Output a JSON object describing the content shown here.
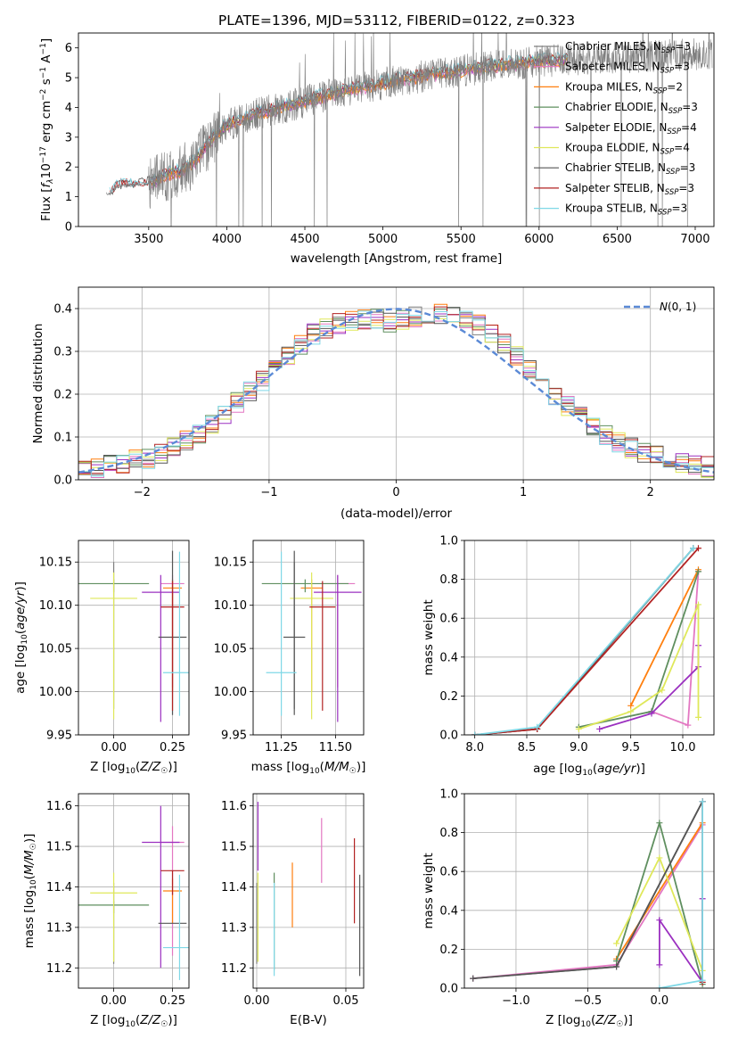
{
  "page": {
    "title": "PLATE=1396, MJD=53112, FIBERID=0122, z=0.323"
  },
  "colors": {
    "chabrier_miles": "#7f7f7f",
    "salpeter_miles": "#e377c2",
    "kroupa_miles": "#ff7f0e",
    "chabrier_elodie": "#5f8f5f",
    "salpeter_elodie": "#9b30c0",
    "kroupa_elodie": "#dfe85a",
    "chabrier_stelib": "#555555",
    "salpeter_stelib": "#b22222",
    "kroupa_stelib": "#7fd8e6",
    "normal_curve": "#5b8ad6",
    "grid": "#b0b0b0"
  },
  "chart_data": [
    {
      "id": "spectrum",
      "type": "line",
      "title": "PLATE=1396, MJD=53112, FIBERID=0122, z=0.323",
      "xlabel": "wavelength [Angstrom, rest frame]",
      "ylabel": "Flux [f_λ 10^-17 erg cm^-2 s^-1 A^-1]",
      "xlim": [
        3050,
        7120
      ],
      "ylim": [
        0,
        6.5
      ],
      "xticks": [
        3500,
        4000,
        4500,
        5000,
        5500,
        6000,
        6500,
        7000
      ],
      "yticks": [
        0,
        1,
        2,
        3,
        4,
        5,
        6
      ],
      "grid": false,
      "legend_position": "right",
      "continuum_x": [
        3250,
        3300,
        3400,
        3500,
        3600,
        3700,
        3800,
        3900,
        4000,
        4200,
        4400,
        4600,
        4800,
        5000,
        5200,
        5400,
        5600,
        5800,
        6000,
        6200,
        6400,
        6600,
        6800,
        7000
      ],
      "continuum_y": [
        1.1,
        1.35,
        1.4,
        1.45,
        1.7,
        1.85,
        2.2,
        2.9,
        3.4,
        3.8,
        4.05,
        4.35,
        4.6,
        4.8,
        5.0,
        5.15,
        5.3,
        5.45,
        5.55,
        5.6,
        5.65,
        5.7,
        5.75,
        5.8
      ],
      "series": [
        {
          "name": "Chabrier MILES, N_SSP=3",
          "n": "3",
          "color_key": "chabrier_miles"
        },
        {
          "name": "Salpeter MILES, N_SSP=3",
          "n": "3",
          "color_key": "salpeter_miles"
        },
        {
          "name": "Kroupa MILES, N_SSP=2",
          "n": "2",
          "color_key": "kroupa_miles"
        },
        {
          "name": "Chabrier ELODIE, N_SSP=3",
          "n": "3",
          "color_key": "chabrier_elodie"
        },
        {
          "name": "Salpeter ELODIE, N_SSP=4",
          "n": "4",
          "color_key": "salpeter_elodie"
        },
        {
          "name": "Kroupa ELODIE, N_SSP=4",
          "n": "4",
          "color_key": "kroupa_elodie"
        },
        {
          "name": "Chabrier STELIB, N_SSP=3",
          "n": "3",
          "color_key": "chabrier_stelib"
        },
        {
          "name": "Salpeter STELIB, N_SSP=3",
          "n": "3",
          "color_key": "salpeter_stelib"
        },
        {
          "name": "Kroupa STELIB, N_SSP=3",
          "n": "3",
          "color_key": "kroupa_stelib"
        }
      ]
    },
    {
      "id": "residuals",
      "type": "line",
      "xlabel": "(data-model)/error",
      "ylabel": "Normed distribution",
      "xlim": [
        -2.5,
        2.5
      ],
      "ylim": [
        0,
        0.45
      ],
      "xticks": [
        -2,
        -1,
        0,
        1,
        2
      ],
      "yticks": [
        0.0,
        0.1,
        0.2,
        0.3,
        0.4
      ],
      "grid": true,
      "legend_position": "top-right",
      "reference": {
        "name": "N(0,1)",
        "mean": 0,
        "std": 1
      },
      "hist_bin_width": 0.1,
      "hist_x": [
        -2.45,
        -2.35,
        -2.25,
        -2.15,
        -2.05,
        -1.95,
        -1.85,
        -1.75,
        -1.65,
        -1.55,
        -1.45,
        -1.35,
        -1.25,
        -1.15,
        -1.05,
        -0.95,
        -0.85,
        -0.75,
        -0.65,
        -0.55,
        -0.45,
        -0.35,
        -0.25,
        -0.15,
        -0.05,
        0.05,
        0.15,
        0.25,
        0.35,
        0.45,
        0.55,
        0.65,
        0.75,
        0.85,
        0.95,
        1.05,
        1.15,
        1.25,
        1.35,
        1.45,
        1.55,
        1.65,
        1.75,
        1.85,
        1.95,
        2.05,
        2.15,
        2.25,
        2.35,
        2.45
      ],
      "hist_y": [
        0.025,
        0.03,
        0.035,
        0.04,
        0.045,
        0.05,
        0.06,
        0.075,
        0.09,
        0.11,
        0.13,
        0.155,
        0.18,
        0.205,
        0.23,
        0.26,
        0.29,
        0.315,
        0.34,
        0.355,
        0.365,
        0.37,
        0.375,
        0.375,
        0.37,
        0.375,
        0.38,
        0.385,
        0.39,
        0.385,
        0.375,
        0.36,
        0.34,
        0.315,
        0.29,
        0.26,
        0.23,
        0.2,
        0.175,
        0.15,
        0.125,
        0.105,
        0.09,
        0.075,
        0.065,
        0.055,
        0.045,
        0.04,
        0.035,
        0.03
      ]
    },
    {
      "id": "age_vs_Z",
      "type": "scatter",
      "xlabel": "Z [log10(Z/Z☉)]",
      "ylabel": "age [log10(age/yr)]",
      "xlim": [
        -0.15,
        0.32
      ],
      "ylim": [
        9.95,
        10.175
      ],
      "xticks": [
        "0.00",
        "0.25"
      ],
      "yticks": [
        "9.95",
        "10.00",
        "10.05",
        "10.10",
        "10.15"
      ],
      "grid": true,
      "points": [
        {
          "color_key": "chabrier_miles",
          "x": 0.0,
          "xerr": 0.0,
          "y": 10.08,
          "yerr_lo": 0.1,
          "yerr_hi": 0.07
        },
        {
          "color_key": "salpeter_miles",
          "x": 0.25,
          "xerr": 0.05,
          "y": 10.125,
          "yerr_lo": 0.12,
          "yerr_hi": 0.01
        },
        {
          "color_key": "kroupa_miles",
          "x": 0.25,
          "xerr": 0.04,
          "y": 10.12,
          "yerr_lo": 0.12,
          "yerr_hi": 0.01
        },
        {
          "color_key": "chabrier_elodie",
          "x": 0.0,
          "xerr": 0.15,
          "y": 10.125,
          "yerr_lo": 0.01,
          "yerr_hi": 0.005
        },
        {
          "color_key": "salpeter_elodie",
          "x": 0.2,
          "xerr": 0.08,
          "y": 10.115,
          "yerr_lo": 0.15,
          "yerr_hi": 0.02
        },
        {
          "color_key": "kroupa_elodie",
          "x": 0.0,
          "xerr": 0.1,
          "y": 10.108,
          "yerr_lo": 0.14,
          "yerr_hi": 0.03
        },
        {
          "color_key": "chabrier_stelib",
          "x": 0.25,
          "xerr": 0.06,
          "y": 10.063,
          "yerr_lo": 0.09,
          "yerr_hi": 0.1
        },
        {
          "color_key": "salpeter_stelib",
          "x": 0.25,
          "xerr": 0.05,
          "y": 10.098,
          "yerr_lo": 0.12,
          "yerr_hi": 0.03
        },
        {
          "color_key": "kroupa_stelib",
          "x": 0.28,
          "xerr": 0.07,
          "y": 10.022,
          "yerr_lo": 0.05,
          "yerr_hi": 0.14
        }
      ]
    },
    {
      "id": "age_vs_mass",
      "type": "scatter",
      "xlabel": "mass [log10(M/M☉)]",
      "ylabel": "",
      "xlim": [
        11.12,
        11.63
      ],
      "ylim": [
        9.95,
        10.175
      ],
      "xticks": [
        "11.25",
        "11.50"
      ],
      "yticks": [
        "9.95",
        "10.00",
        "10.05",
        "10.10",
        "10.15"
      ],
      "grid": true,
      "points": [
        {
          "color_key": "chabrier_miles",
          "x": 11.31,
          "xerr": 0.0,
          "y": 10.08,
          "yerr_lo": 0.1,
          "yerr_hi": 0.07
        },
        {
          "color_key": "salpeter_miles",
          "x": 11.51,
          "xerr": 0.08,
          "y": 10.125,
          "yerr_lo": 0.12,
          "yerr_hi": 0.01
        },
        {
          "color_key": "kroupa_miles",
          "x": 11.39,
          "xerr": 0.05,
          "y": 10.12,
          "yerr_lo": 0.12,
          "yerr_hi": 0.01
        },
        {
          "color_key": "chabrier_elodie",
          "x": 11.36,
          "xerr": 0.2,
          "y": 10.125,
          "yerr_lo": 0.01,
          "yerr_hi": 0.005
        },
        {
          "color_key": "salpeter_elodie",
          "x": 11.51,
          "xerr": 0.11,
          "y": 10.115,
          "yerr_lo": 0.15,
          "yerr_hi": 0.02
        },
        {
          "color_key": "kroupa_elodie",
          "x": 11.39,
          "xerr": 0.1,
          "y": 10.108,
          "yerr_lo": 0.14,
          "yerr_hi": 0.03
        },
        {
          "color_key": "chabrier_stelib",
          "x": 11.31,
          "xerr": 0.05,
          "y": 10.063,
          "yerr_lo": 0.09,
          "yerr_hi": 0.1
        },
        {
          "color_key": "salpeter_stelib",
          "x": 11.44,
          "xerr": 0.06,
          "y": 10.098,
          "yerr_lo": 0.12,
          "yerr_hi": 0.03
        },
        {
          "color_key": "kroupa_stelib",
          "x": 11.25,
          "xerr": 0.07,
          "y": 10.022,
          "yerr_lo": 0.05,
          "yerr_hi": 0.14
        }
      ]
    },
    {
      "id": "weight_vs_age",
      "type": "line",
      "xlabel": "age [log10(age/yr)]",
      "ylabel": "mass weight",
      "xlim": [
        7.9,
        10.3
      ],
      "ylim": [
        0.0,
        1.0
      ],
      "xticks": [
        "8.0",
        "8.5",
        "9.0",
        "9.5",
        "10.0"
      ],
      "yticks": [
        "0.0",
        "0.2",
        "0.4",
        "0.6",
        "0.8",
        "1.0"
      ],
      "grid": true,
      "series": [
        {
          "color_key": "chabrier_miles",
          "x": [
            8.0,
            8.6,
            10.1
          ],
          "y": [
            0.0,
            0.03,
            0.96
          ]
        },
        {
          "color_key": "salpeter_miles",
          "x": [
            9.7,
            10.05,
            10.15
          ],
          "y": [
            0.12,
            0.05,
            0.84
          ]
        },
        {
          "color_key": "kroupa_miles",
          "x": [
            9.5,
            10.15
          ],
          "y": [
            0.15,
            0.85
          ]
        },
        {
          "color_key": "chabrier_elodie",
          "x": [
            9.0,
            9.7,
            10.15
          ],
          "y": [
            0.04,
            0.12,
            0.84
          ]
        },
        {
          "color_key": "salpeter_elodie",
          "x": [
            9.2,
            9.7,
            10.15,
            10.15
          ],
          "y": [
            0.03,
            0.11,
            0.35,
            0.46
          ]
        },
        {
          "color_key": "kroupa_elodie",
          "x": [
            9.0,
            9.5,
            9.8,
            10.15,
            10.15
          ],
          "y": [
            0.03,
            0.12,
            0.23,
            0.67,
            0.09
          ]
        },
        {
          "color_key": "chabrier_stelib",
          "x": [
            8.0,
            8.6,
            10.1
          ],
          "y": [
            0.0,
            0.03,
            0.96
          ]
        },
        {
          "color_key": "salpeter_stelib",
          "x": [
            8.0,
            8.6,
            10.15
          ],
          "y": [
            0.0,
            0.03,
            0.96
          ]
        },
        {
          "color_key": "kroupa_stelib",
          "x": [
            8.0,
            8.6,
            10.1
          ],
          "y": [
            0.0,
            0.04,
            0.96
          ]
        }
      ]
    },
    {
      "id": "mass_vs_Z",
      "type": "scatter",
      "xlabel": "Z [log10(Z/Z☉)]",
      "ylabel": "mass [log10(M/M☉)]",
      "xlim": [
        -0.15,
        0.32
      ],
      "ylim": [
        11.15,
        11.63
      ],
      "xticks": [
        "0.00",
        "0.25"
      ],
      "yticks": [
        "11.2",
        "11.3",
        "11.4",
        "11.5",
        "11.6"
      ],
      "grid": true,
      "points": [
        {
          "color_key": "chabrier_miles",
          "x": 0.0,
          "xerr": 0.0,
          "y": 11.31,
          "yerr_lo": 0.1,
          "yerr_hi": 0.1
        },
        {
          "color_key": "salpeter_miles",
          "x": 0.25,
          "xerr": 0.05,
          "y": 11.51,
          "yerr_lo": 0.28,
          "yerr_hi": 0.04
        },
        {
          "color_key": "kroupa_miles",
          "x": 0.25,
          "xerr": 0.04,
          "y": 11.39,
          "yerr_lo": 0.08,
          "yerr_hi": 0.03
        },
        {
          "color_key": "chabrier_elodie",
          "x": 0.0,
          "xerr": 0.15,
          "y": 11.355,
          "yerr_lo": 0.02,
          "yerr_hi": 0.01
        },
        {
          "color_key": "salpeter_elodie",
          "x": 0.2,
          "xerr": 0.08,
          "y": 11.51,
          "yerr_lo": 0.31,
          "yerr_hi": 0.09
        },
        {
          "color_key": "kroupa_elodie",
          "x": 0.0,
          "xerr": 0.1,
          "y": 11.385,
          "yerr_lo": 0.17,
          "yerr_hi": 0.05
        },
        {
          "color_key": "chabrier_stelib",
          "x": 0.25,
          "xerr": 0.06,
          "y": 11.31,
          "yerr_lo": 0.0,
          "yerr_hi": 0.0
        },
        {
          "color_key": "salpeter_stelib",
          "x": 0.25,
          "xerr": 0.05,
          "y": 11.44,
          "yerr_lo": 0.06,
          "yerr_hi": 0.0
        },
        {
          "color_key": "kroupa_stelib",
          "x": 0.28,
          "xerr": 0.07,
          "y": 11.25,
          "yerr_lo": 0.08,
          "yerr_hi": 0.18
        }
      ]
    },
    {
      "id": "mass_vs_EBV",
      "type": "scatter",
      "xlabel": "E(B-V)",
      "ylabel": "",
      "xlim": [
        -0.002,
        0.06
      ],
      "ylim": [
        11.15,
        11.63
      ],
      "xticks": [
        "0.00",
        "0.05"
      ],
      "yticks": [
        "11.2",
        "11.3",
        "11.4",
        "11.5",
        "11.6"
      ],
      "grid": true,
      "points": [
        {
          "color_key": "chabrier_miles",
          "x": 0.0,
          "y": 11.31,
          "yerr_lo": 0.1,
          "yerr_hi": 0.1
        },
        {
          "color_key": "salpeter_miles",
          "x": 0.0364,
          "y": 11.51,
          "yerr_lo": 0.1,
          "yerr_hi": 0.06
        },
        {
          "color_key": "kroupa_miles",
          "x": 0.02,
          "y": 11.39,
          "yerr_lo": 0.09,
          "yerr_hi": 0.07
        },
        {
          "color_key": "chabrier_elodie",
          "x": 0.0098,
          "y": 11.355,
          "yerr_lo": 0.16,
          "yerr_hi": 0.08
        },
        {
          "color_key": "salpeter_elodie",
          "x": 0.0007,
          "y": 11.51,
          "yerr_lo": 0.07,
          "yerr_hi": 0.1
        },
        {
          "color_key": "kroupa_elodie",
          "x": 0.0007,
          "y": 11.385,
          "yerr_lo": 0.17,
          "yerr_hi": 0.05
        },
        {
          "color_key": "chabrier_stelib",
          "x": 0.0578,
          "y": 11.31,
          "yerr_lo": 0.13,
          "yerr_hi": 0.12
        },
        {
          "color_key": "salpeter_stelib",
          "x": 0.0548,
          "y": 11.44,
          "yerr_lo": 0.13,
          "yerr_hi": 0.08
        },
        {
          "color_key": "kroupa_stelib",
          "x": 0.0098,
          "y": 11.25,
          "yerr_lo": 0.07,
          "yerr_hi": 0.16
        }
      ]
    },
    {
      "id": "weight_vs_Z",
      "type": "line",
      "xlabel": "Z [log10(Z/Z☉)]",
      "ylabel": "mass weight",
      "xlim": [
        -1.36,
        0.38
      ],
      "ylim": [
        0.0,
        1.0
      ],
      "xticks": [
        "−1.0",
        "−0.5",
        "0.0"
      ],
      "yticks": [
        "0.0",
        "0.2",
        "0.4",
        "0.6",
        "0.8",
        "1.0"
      ],
      "grid": true,
      "series": [
        {
          "color_key": "chabrier_miles",
          "x": [
            -1.3,
            -0.3,
            0.3
          ],
          "y": [
            0.05,
            0.11,
            0.96
          ]
        },
        {
          "color_key": "salpeter_miles",
          "x": [
            -1.3,
            -0.3,
            0.3
          ],
          "y": [
            0.05,
            0.12,
            0.84
          ]
        },
        {
          "color_key": "kroupa_miles",
          "x": [
            -0.3,
            0.3
          ],
          "y": [
            0.15,
            0.85
          ]
        },
        {
          "color_key": "chabrier_elodie",
          "x": [
            -0.3,
            0.0,
            0.3
          ],
          "y": [
            0.14,
            0.85,
            0.02
          ]
        },
        {
          "color_key": "salpeter_elodie",
          "x": [
            0.0,
            0.0,
            0.3,
            0.3
          ],
          "y": [
            0.12,
            0.35,
            0.03,
            0.46
          ]
        },
        {
          "color_key": "kroupa_elodie",
          "x": [
            -0.3,
            0.0,
            0.3,
            0.3
          ],
          "y": [
            0.23,
            0.67,
            0.09,
            0.03
          ]
        },
        {
          "color_key": "chabrier_stelib",
          "x": [
            -1.3,
            -0.3,
            0.3
          ],
          "y": [
            0.05,
            0.11,
            0.96
          ]
        },
        {
          "color_key": "salpeter_stelib",
          "x": [
            0.3,
            0.3
          ],
          "y": [
            0.03,
            0.96
          ]
        },
        {
          "color_key": "kroupa_stelib",
          "x": [
            0.0,
            0.3,
            0.3
          ],
          "y": [
            0.0,
            0.04,
            0.96
          ]
        }
      ]
    }
  ]
}
